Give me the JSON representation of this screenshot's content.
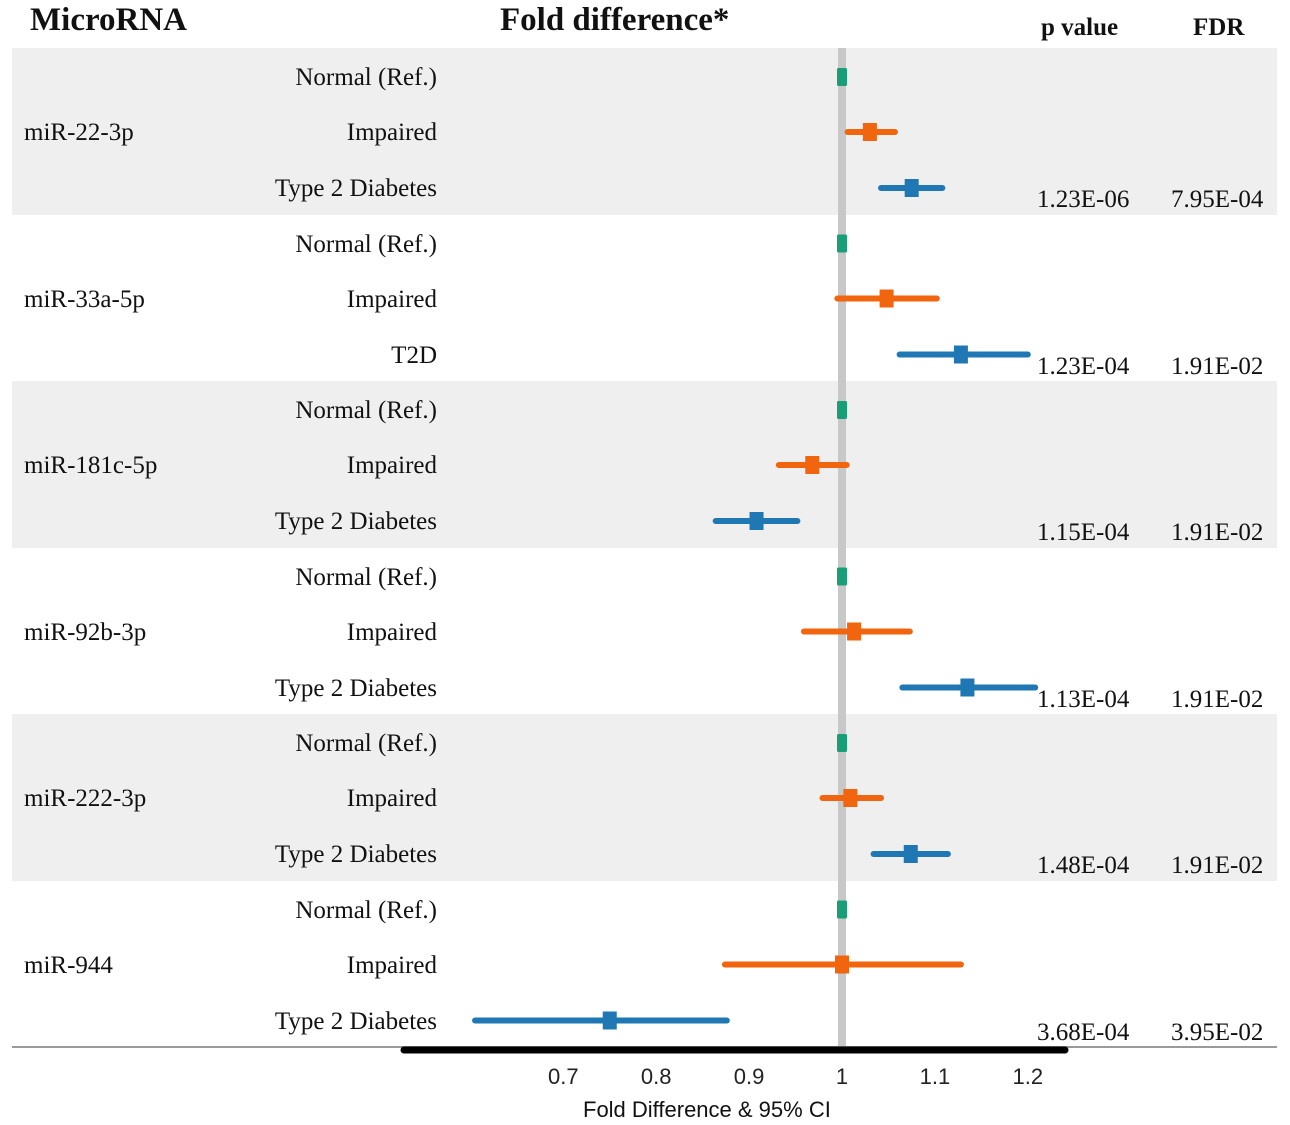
{
  "headers": {
    "microrna": "MicroRNA",
    "fold": "Fold difference*",
    "pvalue": "p value",
    "fdr": "FDR"
  },
  "colors": {
    "normal": "#1a9e77",
    "impaired": "#f0650e",
    "diabetes": "#1f78b4",
    "band_shade": "#efefef",
    "ref_line": "#c8c8c8"
  },
  "chart_data": {
    "type": "forest",
    "xlabel": "Fold Difference  & 95% CI",
    "xticks": [
      "0.7",
      "0.8",
      "0.9",
      "1",
      "1.1",
      "1.2"
    ],
    "xlim": [
      0.6,
      1.26
    ],
    "reference_line": 1,
    "rows": [
      {
        "mirna": "miR-22-3p",
        "p_value": "1.23E-06",
        "fdr": "7.95E-04",
        "groups": [
          {
            "label": "Normal (Ref.)",
            "kind": "normal",
            "est": 1.0,
            "lo": 1.0,
            "hi": 1.0
          },
          {
            "label": "Impaired",
            "kind": "impaired",
            "est": 1.03,
            "lo": 1.006,
            "hi": 1.057
          },
          {
            "label": "Type 2 Diabetes",
            "kind": "diabetes",
            "est": 1.075,
            "lo": 1.042,
            "hi": 1.108
          }
        ]
      },
      {
        "mirna": "miR-33a-5p",
        "p_value": "1.23E-04",
        "fdr": "1.91E-02",
        "groups": [
          {
            "label": "Normal (Ref.)",
            "kind": "normal",
            "est": 1.0,
            "lo": 1.0,
            "hi": 1.0
          },
          {
            "label": "Impaired",
            "kind": "impaired",
            "est": 1.048,
            "lo": 0.995,
            "hi": 1.102
          },
          {
            "label": "T2D",
            "kind": "diabetes",
            "est": 1.128,
            "lo": 1.062,
            "hi": 1.2
          }
        ]
      },
      {
        "mirna": "miR-181c-5p",
        "p_value": "1.15E-04",
        "fdr": "1.91E-02",
        "groups": [
          {
            "label": "Normal (Ref.)",
            "kind": "normal",
            "est": 1.0,
            "lo": 1.0,
            "hi": 1.0
          },
          {
            "label": "Impaired",
            "kind": "impaired",
            "est": 0.968,
            "lo": 0.932,
            "hi": 1.005
          },
          {
            "label": "Type 2 Diabetes",
            "kind": "diabetes",
            "est": 0.908,
            "lo": 0.864,
            "hi": 0.952
          }
        ]
      },
      {
        "mirna": "miR-92b-3p",
        "p_value": "1.13E-04",
        "fdr": "1.91E-02",
        "groups": [
          {
            "label": "Normal (Ref.)",
            "kind": "normal",
            "est": 1.0,
            "lo": 1.0,
            "hi": 1.0
          },
          {
            "label": "Impaired",
            "kind": "impaired",
            "est": 1.013,
            "lo": 0.959,
            "hi": 1.073
          },
          {
            "label": "Type 2 Diabetes",
            "kind": "diabetes",
            "est": 1.135,
            "lo": 1.065,
            "hi": 1.208
          }
        ]
      },
      {
        "mirna": "miR-222-3p",
        "p_value": "1.48E-04",
        "fdr": "1.91E-02",
        "groups": [
          {
            "label": "Normal (Ref.)",
            "kind": "normal",
            "est": 1.0,
            "lo": 1.0,
            "hi": 1.0
          },
          {
            "label": "Impaired",
            "kind": "impaired",
            "est": 1.009,
            "lo": 0.979,
            "hi": 1.042
          },
          {
            "label": "Type 2 Diabetes",
            "kind": "diabetes",
            "est": 1.074,
            "lo": 1.034,
            "hi": 1.114
          }
        ]
      },
      {
        "mirna": "miR-944",
        "p_value": "3.68E-04",
        "fdr": "3.95E-02",
        "groups": [
          {
            "label": "Normal (Ref.)",
            "kind": "normal",
            "est": 1.0,
            "lo": 1.0,
            "hi": 1.0
          },
          {
            "label": "Impaired",
            "kind": "impaired",
            "est": 1.0,
            "lo": 0.874,
            "hi": 1.128
          },
          {
            "label": "Type 2 Diabetes",
            "kind": "diabetes",
            "est": 0.75,
            "lo": 0.605,
            "hi": 0.876
          }
        ]
      }
    ]
  }
}
